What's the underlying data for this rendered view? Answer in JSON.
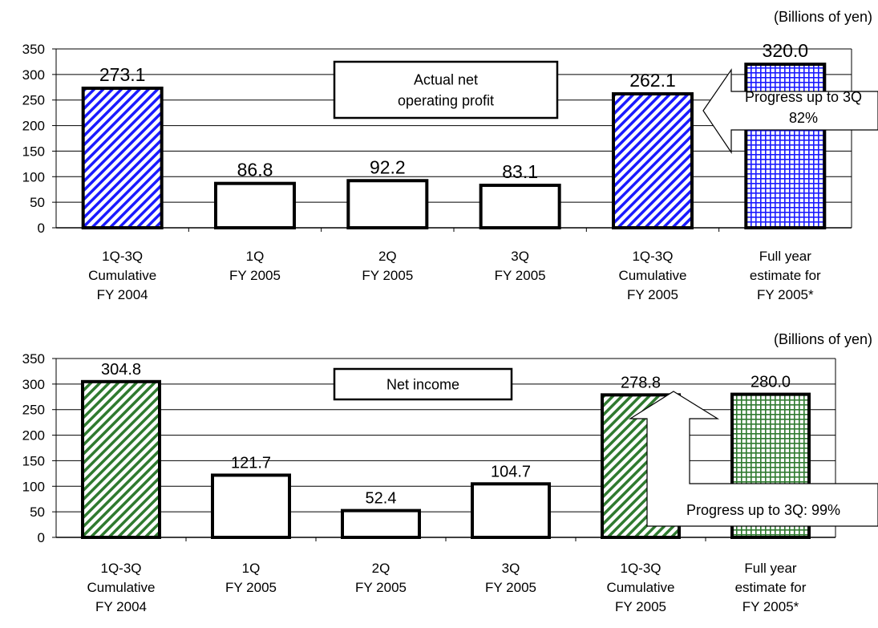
{
  "chart_data": [
    {
      "type": "bar",
      "unit_label": "(Billions of yen)",
      "ylim": [
        0,
        350
      ],
      "yticks": [
        0,
        50,
        100,
        150,
        200,
        250,
        300,
        350
      ],
      "grid": true,
      "categories": [
        [
          "1Q-3Q",
          "Cumulative",
          "FY 2004"
        ],
        [
          "1Q",
          "FY 2005"
        ],
        [
          "2Q",
          "FY 2005"
        ],
        [
          "3Q",
          "FY 2005"
        ],
        [
          "1Q-3Q",
          "Cumulative",
          "FY 2005"
        ],
        [
          "Full year",
          "estimate for",
          "FY 2005*"
        ]
      ],
      "values": [
        273.1,
        86.8,
        92.2,
        83.1,
        262.1,
        320.0
      ],
      "value_labels": [
        "273.1",
        "86.8",
        "92.2",
        "83.1",
        "262.1",
        "320.0"
      ],
      "bar_styles": [
        "hatch-blue",
        "plain",
        "plain",
        "plain",
        "hatch-blue",
        "grid-blue"
      ],
      "callout": "Actual net operating profit",
      "callout_lines": [
        "Actual net",
        "operating profit"
      ],
      "progress_lines": [
        "Progress up to 3Q",
        "82%"
      ]
    },
    {
      "type": "bar",
      "unit_label": "(Billions of yen)",
      "ylim": [
        0,
        350
      ],
      "yticks": [
        0,
        50,
        100,
        150,
        200,
        250,
        300,
        350
      ],
      "grid": true,
      "categories": [
        [
          "1Q-3Q",
          "Cumulative",
          "FY 2004"
        ],
        [
          "1Q",
          "FY 2005"
        ],
        [
          "2Q",
          "FY 2005"
        ],
        [
          "3Q",
          "FY 2005"
        ],
        [
          "1Q-3Q",
          "Cumulative",
          "FY 2005"
        ],
        [
          "Full year",
          "estimate for",
          "FY 2005*"
        ]
      ],
      "values": [
        304.8,
        121.7,
        52.4,
        104.7,
        278.8,
        280.0
      ],
      "value_labels": [
        "304.8",
        "121.7",
        "52.4",
        "104.7",
        "278.8",
        "280.0"
      ],
      "bar_styles": [
        "hatch-green",
        "plain",
        "plain",
        "plain",
        "hatch-green",
        "grid-green"
      ],
      "callout": "Net income",
      "callout_lines": [
        "Net income"
      ],
      "progress_lines": [
        "Progress up to 3Q: 99%"
      ]
    }
  ],
  "colors": {
    "blue": "#1a1aff",
    "green": "#2f7a2f",
    "grid": "#000000"
  }
}
